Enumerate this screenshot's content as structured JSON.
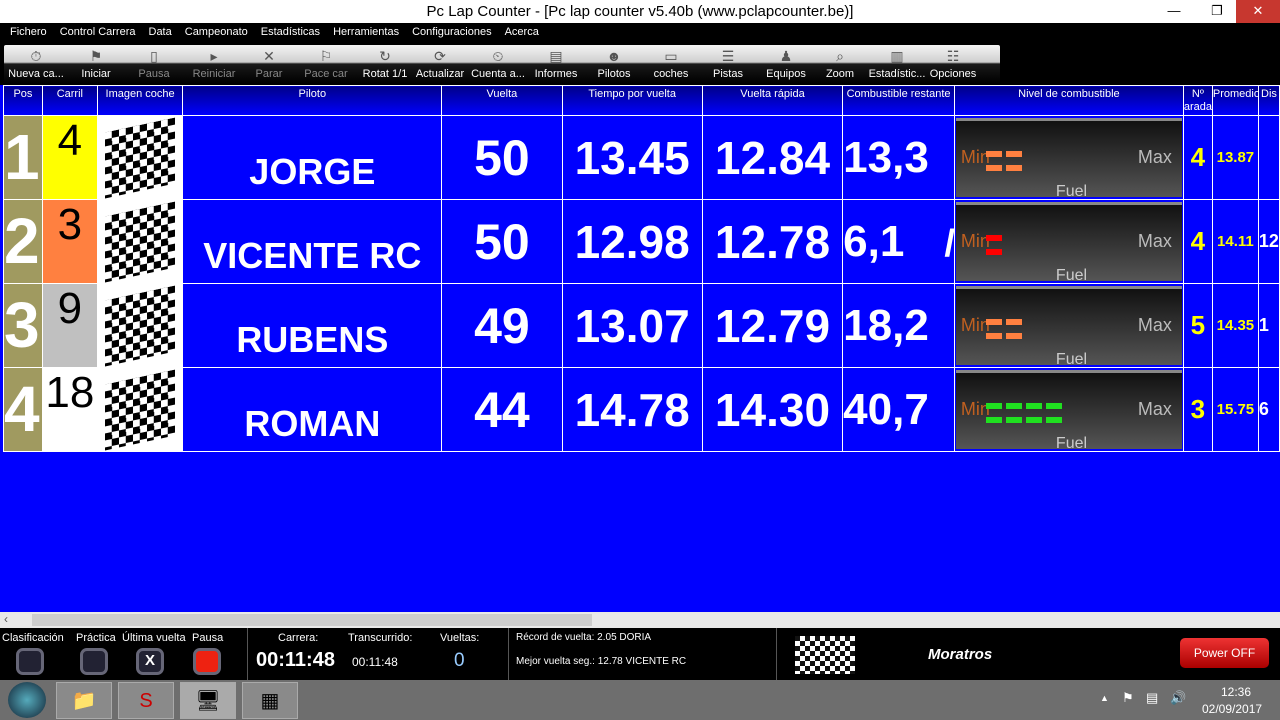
{
  "window": {
    "title": "Pc Lap Counter - [Pc lap counter v5.40b (www.pclapcounter.be)]"
  },
  "menu": [
    "Fichero",
    "Control Carrera",
    "Data",
    "Campeonato",
    "Estadísticas",
    "Herramientas",
    "Configuraciones",
    "Acerca"
  ],
  "toolbar": [
    {
      "label": "Nueva ca...",
      "icon": "stopwatch-icon",
      "enabled": true
    },
    {
      "label": "Iniciar",
      "icon": "green-flag-icon",
      "enabled": true
    },
    {
      "label": "Pausa",
      "icon": "pause-icon",
      "enabled": false
    },
    {
      "label": "Reiniciar",
      "icon": "play-icon",
      "enabled": false
    },
    {
      "label": "Parar",
      "icon": "x-icon",
      "enabled": false
    },
    {
      "label": "Pace car",
      "icon": "flag-icon",
      "enabled": false
    },
    {
      "label": "Rotat 1/1",
      "icon": "rotate-icon",
      "enabled": true
    },
    {
      "label": "Actualizar",
      "icon": "refresh-icon",
      "enabled": true
    },
    {
      "label": "Cuenta a...",
      "icon": "countdown-icon",
      "enabled": true
    },
    {
      "label": "Informes",
      "icon": "report-icon",
      "enabled": true
    },
    {
      "label": "Pilotos",
      "icon": "driver-icon",
      "enabled": true
    },
    {
      "label": "coches",
      "icon": "car-icon",
      "enabled": true
    },
    {
      "label": "Pistas",
      "icon": "track-icon",
      "enabled": true
    },
    {
      "label": "Equipos",
      "icon": "team-icon",
      "enabled": true
    },
    {
      "label": "Zoom",
      "icon": "zoom-icon",
      "enabled": true
    },
    {
      "label": "Estadístic...",
      "icon": "chart-icon",
      "enabled": true
    },
    {
      "label": "Opciones",
      "icon": "options-icon",
      "enabled": true
    }
  ],
  "columns": [
    "Pos",
    "Carril",
    "Imagen coche",
    "Piloto",
    "Vuelta",
    "Tiempo por vuelta",
    "Vuelta rápida",
    "Combustible restante",
    "Nivel de combustible",
    "Nº arada",
    "Promedio",
    "Dis"
  ],
  "fuel_labels": {
    "min": "Min",
    "max": "Max",
    "fuel": "Fuel"
  },
  "rows": [
    {
      "pos": "1",
      "lane": "4",
      "lane_color": "#ffff00",
      "driver": "JORGE",
      "laps": "50",
      "lap_time": "13.45",
      "best": "12.84",
      "fuel": "13,3",
      "fuel_extra": "",
      "fuel_segments": 4,
      "fuel_color": "#ff8040",
      "stops": "4",
      "avg": "13.87",
      "dist": ""
    },
    {
      "pos": "2",
      "lane": "3",
      "lane_color": "#ff8040",
      "driver": "VICENTE RC",
      "laps": "50",
      "lap_time": "12.98",
      "best": "12.78",
      "fuel": "6,1",
      "fuel_extra": "/",
      "fuel_segments": 2,
      "fuel_color": "#ff0000",
      "stops": "4",
      "avg": "14.11",
      "dist": "12"
    },
    {
      "pos": "3",
      "lane": "9",
      "lane_color": "#c0c0c0",
      "driver": "RUBENS",
      "laps": "49",
      "lap_time": "13.07",
      "best": "12.79",
      "fuel": "18,2",
      "fuel_extra": "",
      "fuel_segments": 4,
      "fuel_color": "#ff8040",
      "stops": "5",
      "avg": "14.35",
      "dist": "1"
    },
    {
      "pos": "4",
      "lane": "18",
      "lane_color": "#ffffff",
      "driver": "ROMAN",
      "laps": "44",
      "lap_time": "14.78",
      "best": "14.30",
      "fuel": "40,7",
      "fuel_extra": "",
      "fuel_segments": 8,
      "fuel_color": "#20e020",
      "stops": "3",
      "avg": "15.75",
      "dist": "6"
    }
  ],
  "status": {
    "buttons": [
      "Clasificación",
      "Práctica",
      "Última vuelta",
      "Pausa"
    ],
    "carrera_label": "Carrera:",
    "carrera": "00:11:48",
    "transcurrido_label": "Transcurrido:",
    "transcurrido": "00:11:48",
    "vueltas_label": "Vueltas:",
    "vueltas": "0",
    "record_label": "Récord de vuelta:",
    "record": "2.05 DORIA",
    "mejor_label": "Mejor vuelta seg.:",
    "mejor": "12.78 VICENTE RC",
    "club": "Moratros",
    "power": "Power OFF"
  },
  "taskbar": {
    "time": "12:36",
    "date": "02/09/2017"
  }
}
